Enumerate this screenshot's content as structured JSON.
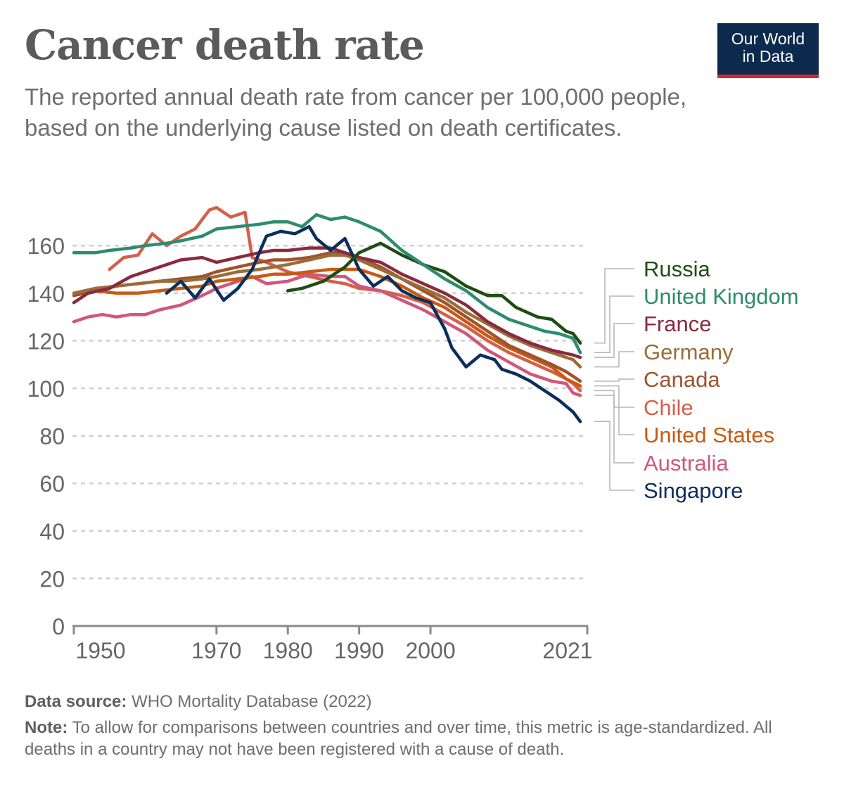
{
  "header": {
    "title": "Cancer death rate",
    "subtitle": "The reported annual death rate from cancer per 100,000 people, based on the underlying cause listed on death certificates.",
    "logo_line1": "Our World",
    "logo_line2": "in Data"
  },
  "footer": {
    "source_label": "Data source:",
    "source_text": "WHO Mortality Database (2022)",
    "note_label": "Note:",
    "note_text": "To allow for comparisons between countries and over time, this metric is age-standardized. All deaths in a country may not have been registered with a cause of death."
  },
  "chart_data": {
    "type": "line",
    "xlim": [
      1950,
      2021
    ],
    "ylim": [
      0,
      170
    ],
    "x_ticks": [
      "1950",
      "1970",
      "1980",
      "1990",
      "2000",
      "2021"
    ],
    "y_ticks": [
      "0",
      "20",
      "40",
      "60",
      "80",
      "100",
      "120",
      "140",
      "160"
    ],
    "grid": "horizontal dashed",
    "legend": "right, labels at line ends",
    "series": [
      {
        "name": "Russia",
        "color": "#1e4d12",
        "points": [
          [
            1980,
            141
          ],
          [
            1982,
            142
          ],
          [
            1985,
            145
          ],
          [
            1988,
            151
          ],
          [
            1990,
            157
          ],
          [
            1993,
            161
          ],
          [
            1996,
            156
          ],
          [
            1999,
            152
          ],
          [
            2002,
            149
          ],
          [
            2005,
            143
          ],
          [
            2008,
            139
          ],
          [
            2010,
            139
          ],
          [
            2012,
            134
          ],
          [
            2015,
            130
          ],
          [
            2017,
            129
          ],
          [
            2019,
            124
          ],
          [
            2020,
            123
          ],
          [
            2021,
            119
          ]
        ]
      },
      {
        "name": "United Kingdom",
        "color": "#2e8b6e",
        "points": [
          [
            1950,
            157
          ],
          [
            1953,
            157
          ],
          [
            1955,
            158
          ],
          [
            1958,
            159
          ],
          [
            1960,
            160
          ],
          [
            1963,
            161
          ],
          [
            1965,
            162
          ],
          [
            1968,
            164
          ],
          [
            1970,
            167
          ],
          [
            1973,
            168
          ],
          [
            1976,
            169
          ],
          [
            1978,
            170
          ],
          [
            1980,
            170
          ],
          [
            1982,
            168
          ],
          [
            1984,
            173
          ],
          [
            1986,
            171
          ],
          [
            1988,
            172
          ],
          [
            1990,
            170
          ],
          [
            1993,
            166
          ],
          [
            1996,
            158
          ],
          [
            1999,
            152
          ],
          [
            2002,
            146
          ],
          [
            2005,
            141
          ],
          [
            2008,
            134
          ],
          [
            2011,
            129
          ],
          [
            2014,
            126
          ],
          [
            2016,
            124
          ],
          [
            2018,
            123
          ],
          [
            2020,
            121
          ],
          [
            2021,
            115
          ]
        ]
      },
      {
        "name": "France",
        "color": "#8a2a3f",
        "points": [
          [
            1950,
            136
          ],
          [
            1952,
            140
          ],
          [
            1955,
            142
          ],
          [
            1958,
            147
          ],
          [
            1960,
            149
          ],
          [
            1963,
            152
          ],
          [
            1965,
            154
          ],
          [
            1968,
            155
          ],
          [
            1970,
            153
          ],
          [
            1973,
            155
          ],
          [
            1976,
            157
          ],
          [
            1978,
            158
          ],
          [
            1980,
            158
          ],
          [
            1983,
            159
          ],
          [
            1986,
            159
          ],
          [
            1988,
            157
          ],
          [
            1990,
            155
          ],
          [
            1993,
            153
          ],
          [
            1996,
            148
          ],
          [
            1999,
            144
          ],
          [
            2002,
            140
          ],
          [
            2005,
            135
          ],
          [
            2008,
            128
          ],
          [
            2011,
            123
          ],
          [
            2014,
            119
          ],
          [
            2017,
            116
          ],
          [
            2020,
            114
          ],
          [
            2021,
            113
          ]
        ]
      },
      {
        "name": "Germany",
        "color": "#9a6d38",
        "points": [
          [
            1950,
            140
          ],
          [
            1953,
            142
          ],
          [
            1956,
            143
          ],
          [
            1959,
            144
          ],
          [
            1962,
            145
          ],
          [
            1965,
            145
          ],
          [
            1968,
            146
          ],
          [
            1970,
            147
          ],
          [
            1973,
            149
          ],
          [
            1976,
            150
          ],
          [
            1978,
            151
          ],
          [
            1980,
            152
          ],
          [
            1983,
            154
          ],
          [
            1986,
            156
          ],
          [
            1988,
            156
          ],
          [
            1990,
            154
          ],
          [
            1993,
            150
          ],
          [
            1996,
            146
          ],
          [
            1999,
            142
          ],
          [
            2002,
            138
          ],
          [
            2005,
            132
          ],
          [
            2008,
            127
          ],
          [
            2011,
            122
          ],
          [
            2014,
            118
          ],
          [
            2017,
            115
          ],
          [
            2020,
            112
          ],
          [
            2021,
            109
          ]
        ]
      },
      {
        "name": "Canada",
        "color": "#a0522d",
        "points": [
          [
            1950,
            139
          ],
          [
            1953,
            141
          ],
          [
            1956,
            143
          ],
          [
            1959,
            144
          ],
          [
            1962,
            145
          ],
          [
            1965,
            146
          ],
          [
            1968,
            147
          ],
          [
            1970,
            149
          ],
          [
            1973,
            151
          ],
          [
            1976,
            153
          ],
          [
            1978,
            154
          ],
          [
            1980,
            154
          ],
          [
            1983,
            155
          ],
          [
            1986,
            157
          ],
          [
            1988,
            157
          ],
          [
            1990,
            155
          ],
          [
            1993,
            151
          ],
          [
            1996,
            146
          ],
          [
            1999,
            141
          ],
          [
            2002,
            136
          ],
          [
            2005,
            130
          ],
          [
            2008,
            124
          ],
          [
            2011,
            118
          ],
          [
            2014,
            114
          ],
          [
            2017,
            110
          ],
          [
            2019,
            107
          ],
          [
            2021,
            103
          ]
        ]
      },
      {
        "name": "Chile",
        "color": "#d4604a",
        "points": [
          [
            1955,
            150
          ],
          [
            1957,
            155
          ],
          [
            1959,
            156
          ],
          [
            1961,
            165
          ],
          [
            1963,
            160
          ],
          [
            1965,
            164
          ],
          [
            1967,
            167
          ],
          [
            1969,
            175
          ],
          [
            1970,
            176
          ],
          [
            1972,
            172
          ],
          [
            1974,
            174
          ],
          [
            1975,
            155
          ],
          [
            1977,
            153
          ],
          [
            1980,
            149
          ],
          [
            1983,
            147
          ],
          [
            1986,
            145
          ],
          [
            1988,
            144
          ],
          [
            1990,
            142
          ],
          [
            1993,
            141
          ],
          [
            1996,
            139
          ],
          [
            1999,
            136
          ],
          [
            2002,
            131
          ],
          [
            2005,
            126
          ],
          [
            2008,
            120
          ],
          [
            2011,
            115
          ],
          [
            2014,
            111
          ],
          [
            2017,
            107
          ],
          [
            2019,
            104
          ],
          [
            2020,
            102
          ],
          [
            2021,
            99
          ]
        ]
      },
      {
        "name": "United States",
        "color": "#c85a12",
        "points": [
          [
            1950,
            140
          ],
          [
            1953,
            141
          ],
          [
            1956,
            140
          ],
          [
            1959,
            140
          ],
          [
            1962,
            141
          ],
          [
            1965,
            142
          ],
          [
            1968,
            143
          ],
          [
            1970,
            145
          ],
          [
            1973,
            146
          ],
          [
            1976,
            147
          ],
          [
            1978,
            148
          ],
          [
            1980,
            148
          ],
          [
            1983,
            149
          ],
          [
            1986,
            150
          ],
          [
            1988,
            150
          ],
          [
            1990,
            150
          ],
          [
            1993,
            147
          ],
          [
            1996,
            143
          ],
          [
            1999,
            138
          ],
          [
            2002,
            134
          ],
          [
            2005,
            128
          ],
          [
            2008,
            122
          ],
          [
            2011,
            117
          ],
          [
            2014,
            113
          ],
          [
            2017,
            109
          ],
          [
            2019,
            104
          ],
          [
            2021,
            101
          ]
        ]
      },
      {
        "name": "Australia",
        "color": "#d0577a",
        "points": [
          [
            1950,
            128
          ],
          [
            1952,
            130
          ],
          [
            1954,
            131
          ],
          [
            1956,
            130
          ],
          [
            1958,
            131
          ],
          [
            1960,
            131
          ],
          [
            1962,
            133
          ],
          [
            1965,
            135
          ],
          [
            1968,
            139
          ],
          [
            1970,
            142
          ],
          [
            1973,
            145
          ],
          [
            1975,
            147
          ],
          [
            1977,
            144
          ],
          [
            1980,
            145
          ],
          [
            1983,
            148
          ],
          [
            1986,
            147
          ],
          [
            1988,
            147
          ],
          [
            1990,
            143
          ],
          [
            1993,
            141
          ],
          [
            1996,
            137
          ],
          [
            1999,
            133
          ],
          [
            2002,
            128
          ],
          [
            2005,
            123
          ],
          [
            2008,
            116
          ],
          [
            2011,
            111
          ],
          [
            2014,
            106
          ],
          [
            2017,
            103
          ],
          [
            2019,
            102
          ],
          [
            2020,
            98
          ],
          [
            2021,
            97
          ]
        ]
      },
      {
        "name": "Singapore",
        "color": "#0c2e5c",
        "points": [
          [
            1963,
            140
          ],
          [
            1965,
            145
          ],
          [
            1967,
            138
          ],
          [
            1969,
            146
          ],
          [
            1971,
            137
          ],
          [
            1973,
            142
          ],
          [
            1975,
            150
          ],
          [
            1977,
            164
          ],
          [
            1979,
            166
          ],
          [
            1981,
            165
          ],
          [
            1983,
            168
          ],
          [
            1984,
            163
          ],
          [
            1986,
            158
          ],
          [
            1988,
            163
          ],
          [
            1990,
            150
          ],
          [
            1992,
            143
          ],
          [
            1994,
            147
          ],
          [
            1996,
            141
          ],
          [
            1998,
            138
          ],
          [
            2000,
            136
          ],
          [
            2002,
            125
          ],
          [
            2003,
            117
          ],
          [
            2005,
            109
          ],
          [
            2007,
            114
          ],
          [
            2009,
            112
          ],
          [
            2010,
            108
          ],
          [
            2012,
            106
          ],
          [
            2014,
            103
          ],
          [
            2016,
            99
          ],
          [
            2018,
            95
          ],
          [
            2020,
            90
          ],
          [
            2021,
            86
          ]
        ]
      }
    ]
  }
}
